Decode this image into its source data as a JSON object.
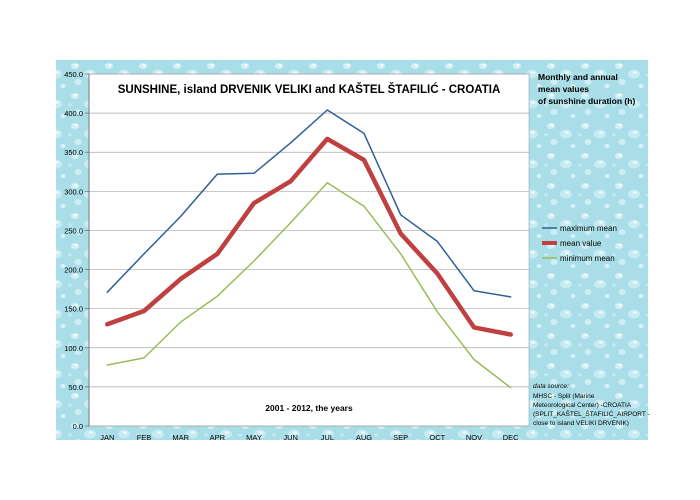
{
  "chart_data": {
    "type": "line",
    "title": "SUNSHINE, island DRVENIK VELIKI and KAŠTEL ŠTAFILIĆ - CROATIA",
    "subtitle": "2001 - 2012, the years",
    "side_title": [
      "Monthly and annual",
      "mean values",
      "of sunshine duration (h)"
    ],
    "categories": [
      "JAN",
      "FEB",
      "MAR",
      "APR",
      "MAY",
      "JUN",
      "JUL",
      "AUG",
      "SEP",
      "OCT",
      "NOV",
      "DEC"
    ],
    "ylim": [
      0,
      450
    ],
    "yticks": [
      "0.0",
      "50.0",
      "100.0",
      "150.0",
      "200.0",
      "250.0",
      "300.0",
      "350.0",
      "400.0",
      "450.0"
    ],
    "grid": true,
    "series": [
      {
        "name": "maximum mean",
        "color": "#2f5f96",
        "values": [
          171,
          220,
          268,
          322,
          323,
          362,
          404,
          374,
          270,
          236,
          173,
          165
        ]
      },
      {
        "name": "mean value",
        "color": "#bf4040",
        "values": [
          130,
          147,
          188,
          220,
          285,
          313,
          367,
          340,
          246,
          195,
          126,
          117
        ]
      },
      {
        "name": "minimum mean",
        "color": "#9bbb59",
        "values": [
          78,
          87,
          133,
          166,
          211,
          260,
          311,
          281,
          220,
          146,
          85,
          49
        ]
      }
    ],
    "legend_position": "right",
    "source_note": [
      "data source:",
      "MHSC - Split (Marine",
      "Meteorological Center) -CROATIA",
      "(SPLIT_KAŠTEL_ŠTAFILIĆ_AIRPORT -",
      "close to island VELIKI DRVENIK)"
    ]
  }
}
